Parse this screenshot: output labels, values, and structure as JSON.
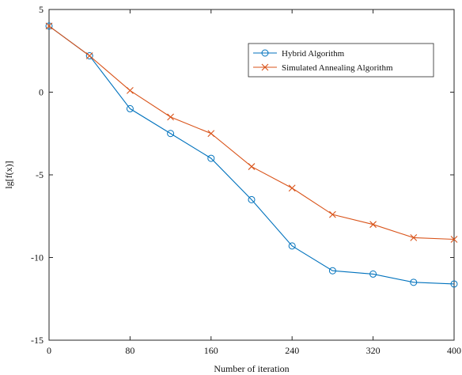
{
  "chart_data": {
    "type": "line",
    "title": "",
    "xlabel": "Number of iteration",
    "ylabel": "lg[f(x)]",
    "xlim": [
      0,
      400
    ],
    "ylim": [
      -15,
      5
    ],
    "x_ticks": [
      0,
      80,
      160,
      240,
      320,
      400
    ],
    "y_ticks": [
      5,
      0,
      -5,
      -10,
      -15
    ],
    "x_tick_labels": [
      "0",
      "80",
      "160",
      "240",
      "320",
      "400"
    ],
    "y_tick_labels": [
      "5",
      "0",
      "-5",
      "-10",
      "-15"
    ],
    "grid": false,
    "legend_position": "top-right",
    "series": [
      {
        "name": "Hybrid Algorithm",
        "color": "#0072BD",
        "marker": "circle",
        "x": [
          0,
          40,
          80,
          120,
          160,
          200,
          240,
          280,
          320,
          360,
          400
        ],
        "y": [
          4.0,
          2.2,
          -1.0,
          -2.5,
          -4.0,
          -6.5,
          -9.3,
          -10.8,
          -11.0,
          -11.5,
          -11.6
        ]
      },
      {
        "name": "Simulated Annealing Algorithm",
        "color": "#D95319",
        "marker": "x",
        "x": [
          0,
          40,
          80,
          120,
          160,
          200,
          240,
          280,
          320,
          360,
          400
        ],
        "y": [
          4.0,
          2.2,
          0.1,
          -1.5,
          -2.5,
          -4.5,
          -5.8,
          -7.4,
          -8.0,
          -8.8,
          -8.9
        ]
      }
    ]
  }
}
